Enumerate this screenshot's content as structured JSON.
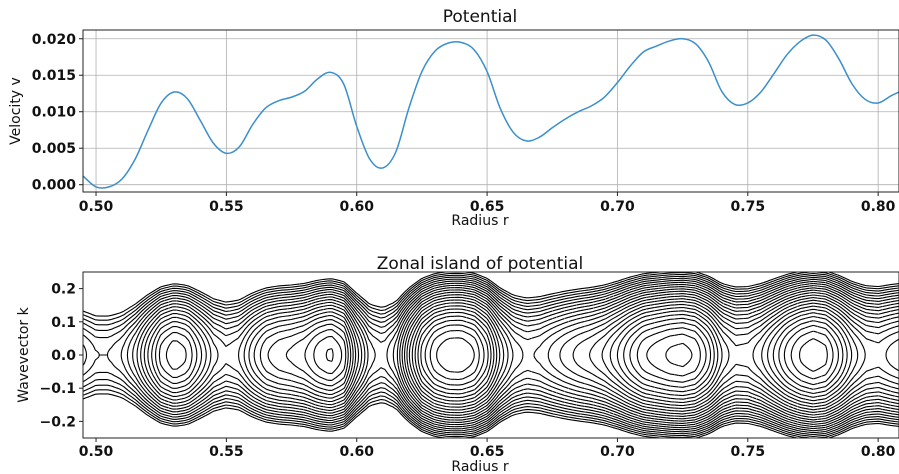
{
  "colors": {
    "line": "#3b8fcb",
    "contour": "#000000",
    "grid": "#b0b0b0"
  },
  "chart_data": [
    {
      "type": "line",
      "title": "Potential",
      "xlabel": "Radius r",
      "ylabel": "Velocity v",
      "xlim": [
        0.495,
        0.808
      ],
      "ylim": [
        -0.001,
        0.0212
      ],
      "grid": true,
      "xticks": [
        0.5,
        0.55,
        0.6,
        0.65,
        0.7,
        0.75,
        0.8
      ],
      "xtick_labels": [
        "0.50",
        "0.55",
        "0.60",
        "0.65",
        "0.70",
        "0.75",
        "0.80"
      ],
      "yticks": [
        0.0,
        0.005,
        0.01,
        0.015,
        0.02
      ],
      "ytick_labels": [
        "0.000",
        "0.005",
        "0.010",
        "0.015",
        "0.020"
      ],
      "series": [
        {
          "x": [
            0.495,
            0.5,
            0.505,
            0.51,
            0.515,
            0.52,
            0.525,
            0.53,
            0.535,
            0.54,
            0.545,
            0.55,
            0.555,
            0.56,
            0.565,
            0.57,
            0.575,
            0.58,
            0.585,
            0.59,
            0.595,
            0.6,
            0.605,
            0.61,
            0.615,
            0.62,
            0.625,
            0.63,
            0.635,
            0.64,
            0.645,
            0.65,
            0.655,
            0.66,
            0.665,
            0.67,
            0.675,
            0.68,
            0.685,
            0.69,
            0.695,
            0.7,
            0.705,
            0.71,
            0.715,
            0.72,
            0.725,
            0.73,
            0.735,
            0.74,
            0.745,
            0.75,
            0.755,
            0.76,
            0.765,
            0.77,
            0.775,
            0.78,
            0.785,
            0.79,
            0.795,
            0.8,
            0.805,
            0.808
          ],
          "y": [
            0.0012,
            -0.0003,
            -0.0003,
            0.0008,
            0.0035,
            0.0075,
            0.0112,
            0.0127,
            0.0118,
            0.0088,
            0.0057,
            0.0043,
            0.0052,
            0.0082,
            0.0105,
            0.0115,
            0.012,
            0.0128,
            0.0145,
            0.0154,
            0.0138,
            0.008,
            0.0035,
            0.0023,
            0.0045,
            0.0105,
            0.0155,
            0.0183,
            0.0194,
            0.0195,
            0.0185,
            0.0155,
            0.0105,
            0.0072,
            0.006,
            0.0065,
            0.0078,
            0.009,
            0.01,
            0.0108,
            0.012,
            0.014,
            0.0163,
            0.0182,
            0.019,
            0.0197,
            0.02,
            0.0193,
            0.0168,
            0.0128,
            0.011,
            0.0112,
            0.0127,
            0.0152,
            0.0178,
            0.0196,
            0.0205,
            0.0198,
            0.0172,
            0.0138,
            0.0117,
            0.0112,
            0.0122,
            0.0127
          ]
        }
      ]
    },
    {
      "type": "contour",
      "title": "Zonal island of potential",
      "xlabel": "Radius r",
      "ylabel": "Wavevector k",
      "xlim": [
        0.495,
        0.808
      ],
      "ylim": [
        -0.25,
        0.25
      ],
      "grid": false,
      "xticks": [
        0.5,
        0.55,
        0.6,
        0.65,
        0.7,
        0.75,
        0.8
      ],
      "xtick_labels": [
        "0.50",
        "0.55",
        "0.60",
        "0.65",
        "0.70",
        "0.75",
        "0.80"
      ],
      "yticks": [
        0.2,
        0.1,
        0.0,
        -0.1,
        -0.2
      ],
      "ytick_labels": [
        "0.2",
        "0.1",
        "0.0",
        "−0.1",
        "−0.2"
      ],
      "line_styles": {
        "negative": "dashed",
        "positive": "solid"
      },
      "island_centers_r": [
        0.532,
        0.593,
        0.642,
        0.722,
        0.778
      ]
    }
  ]
}
